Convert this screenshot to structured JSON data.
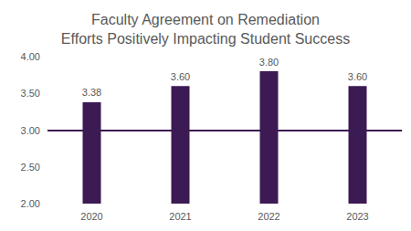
{
  "chart_data": {
    "type": "bar",
    "title": "Faculty Agreement on Remediation\nEfforts Positively Impacting Student Success",
    "categories": [
      "2020",
      "2021",
      "2022",
      "2023"
    ],
    "values": [
      3.38,
      3.6,
      3.8,
      3.6
    ],
    "value_labels": [
      "3.38",
      "3.60",
      "3.80",
      "3.60"
    ],
    "color": "#3c1a53",
    "ylim": [
      2,
      4
    ],
    "yticks": [
      {
        "value": 2,
        "label": "2.00"
      },
      {
        "value": 2.5,
        "label": "2.50"
      },
      {
        "value": 3,
        "label": "3.00"
      },
      {
        "value": 3.5,
        "label": "3.50"
      },
      {
        "value": 4,
        "label": "4.00"
      }
    ],
    "reference_line": 3,
    "grid": false,
    "data_labels": true
  }
}
